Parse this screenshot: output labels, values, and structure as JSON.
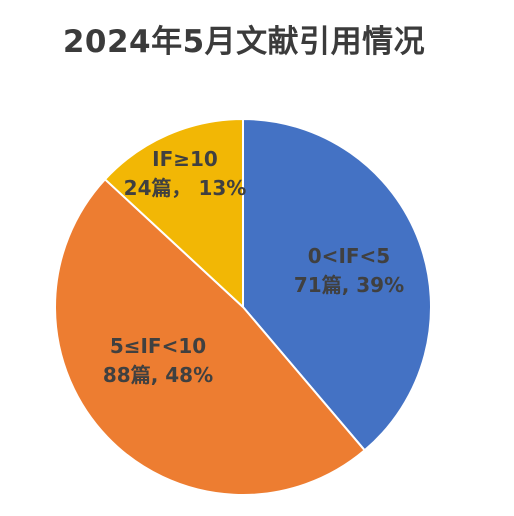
{
  "chart_data": {
    "type": "pie",
    "title": "2024年5月文献引用情况",
    "start": "top",
    "direction": "clockwise",
    "slices": [
      {
        "label": "0<IF<5",
        "value": 71,
        "value_label": "71篇, 39%",
        "percent": 39,
        "color": "#4472C4"
      },
      {
        "label": "5≤IF<10",
        "value": 88,
        "value_label": "88篇, 48%",
        "percent": 48,
        "color": "#ED7D31"
      },
      {
        "label": "IF≥10",
        "value": 24,
        "value_label": "24篇， 13%",
        "percent": 13,
        "color": "#F2B705"
      }
    ]
  }
}
